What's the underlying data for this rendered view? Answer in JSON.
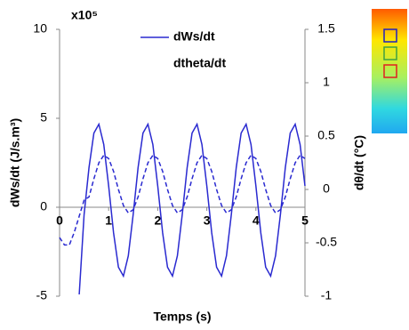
{
  "chart_data": {
    "type": "line",
    "y_multiplier": "x10⁵",
    "xlabel": "Temps (s)",
    "ylabel": "dWs/dt (J/s.m³)",
    "y2label": "dθ/dt (°C)",
    "xlim": [
      0,
      5
    ],
    "xticks": [
      0,
      1,
      2,
      3,
      4,
      5
    ],
    "ylim": [
      -5,
      10
    ],
    "yticks": [
      -5,
      0,
      5,
      10
    ],
    "y2lim": [
      -1,
      1.5
    ],
    "y2ticks": [
      -1,
      -0.5,
      0,
      0.5,
      1,
      1.5
    ],
    "series": [
      {
        "name": "dWs/dt",
        "color": "#2a2ad0",
        "style": "solid",
        "x": [
          0.4,
          0.5,
          0.6,
          0.7,
          0.8,
          0.9,
          1.0,
          1.1,
          1.2,
          1.3,
          1.4,
          1.5,
          1.6,
          1.7,
          1.8,
          1.9,
          2.0,
          2.1,
          2.2,
          2.3,
          2.4,
          2.5,
          2.6,
          2.7,
          2.8,
          2.9,
          3.0,
          3.1,
          3.2,
          3.3,
          3.4,
          3.5,
          3.6,
          3.7,
          3.8,
          3.9,
          4.0,
          4.1,
          4.2,
          4.3,
          4.4,
          4.5,
          4.6,
          4.7,
          4.8,
          4.9,
          5.0
        ],
        "values": [
          -4.9,
          -0.4,
          2.23,
          4.17,
          4.67,
          3.53,
          1.2,
          -1.43,
          -3.37,
          -3.87,
          -2.73,
          -0.4,
          2.23,
          4.17,
          4.67,
          3.53,
          1.2,
          -1.43,
          -3.37,
          -3.87,
          -2.73,
          -0.4,
          2.23,
          4.17,
          4.67,
          3.53,
          1.2,
          -1.43,
          -3.37,
          -3.87,
          -2.73,
          -0.4,
          2.23,
          4.17,
          4.67,
          3.53,
          1.2,
          -1.43,
          -3.37,
          -3.87,
          -2.73,
          -0.4,
          2.23,
          4.17,
          4.67,
          3.53,
          1.2
        ]
      },
      {
        "name": "dtheta/dt",
        "color": "#2a2ad0",
        "style": "dashed",
        "axis": "y2",
        "x": [
          0,
          0.1,
          0.2,
          0.3,
          0.4,
          0.5,
          0.6,
          0.7,
          0.8,
          0.9,
          1.0,
          1.1,
          1.2,
          1.3,
          1.4,
          1.5,
          1.6,
          1.7,
          1.8,
          1.9,
          2.0,
          2.1,
          2.2,
          2.3,
          2.4,
          2.5,
          2.6,
          2.7,
          2.8,
          2.9,
          3.0,
          3.1,
          3.2,
          3.3,
          3.4,
          3.5,
          3.6,
          3.7,
          3.8,
          3.9,
          4.0,
          4.1,
          4.2,
          4.3,
          4.4,
          4.5,
          4.6,
          4.7,
          4.8,
          4.9,
          5.0
        ],
        "values": [
          -0.45,
          -0.52,
          -0.52,
          -0.4,
          -0.25,
          -0.1,
          -0.07,
          0.1,
          0.25,
          0.32,
          0.29,
          0.17,
          0.0,
          -0.15,
          -0.22,
          -0.19,
          -0.07,
          0.1,
          0.25,
          0.32,
          0.29,
          0.17,
          0.0,
          -0.15,
          -0.22,
          -0.19,
          -0.07,
          0.1,
          0.25,
          0.32,
          0.29,
          0.17,
          0.0,
          -0.15,
          -0.22,
          -0.19,
          -0.07,
          0.1,
          0.25,
          0.32,
          0.29,
          0.17,
          0.0,
          -0.15,
          -0.22,
          -0.19,
          -0.07,
          0.1,
          0.25,
          0.32,
          0.29
        ]
      }
    ]
  }
}
